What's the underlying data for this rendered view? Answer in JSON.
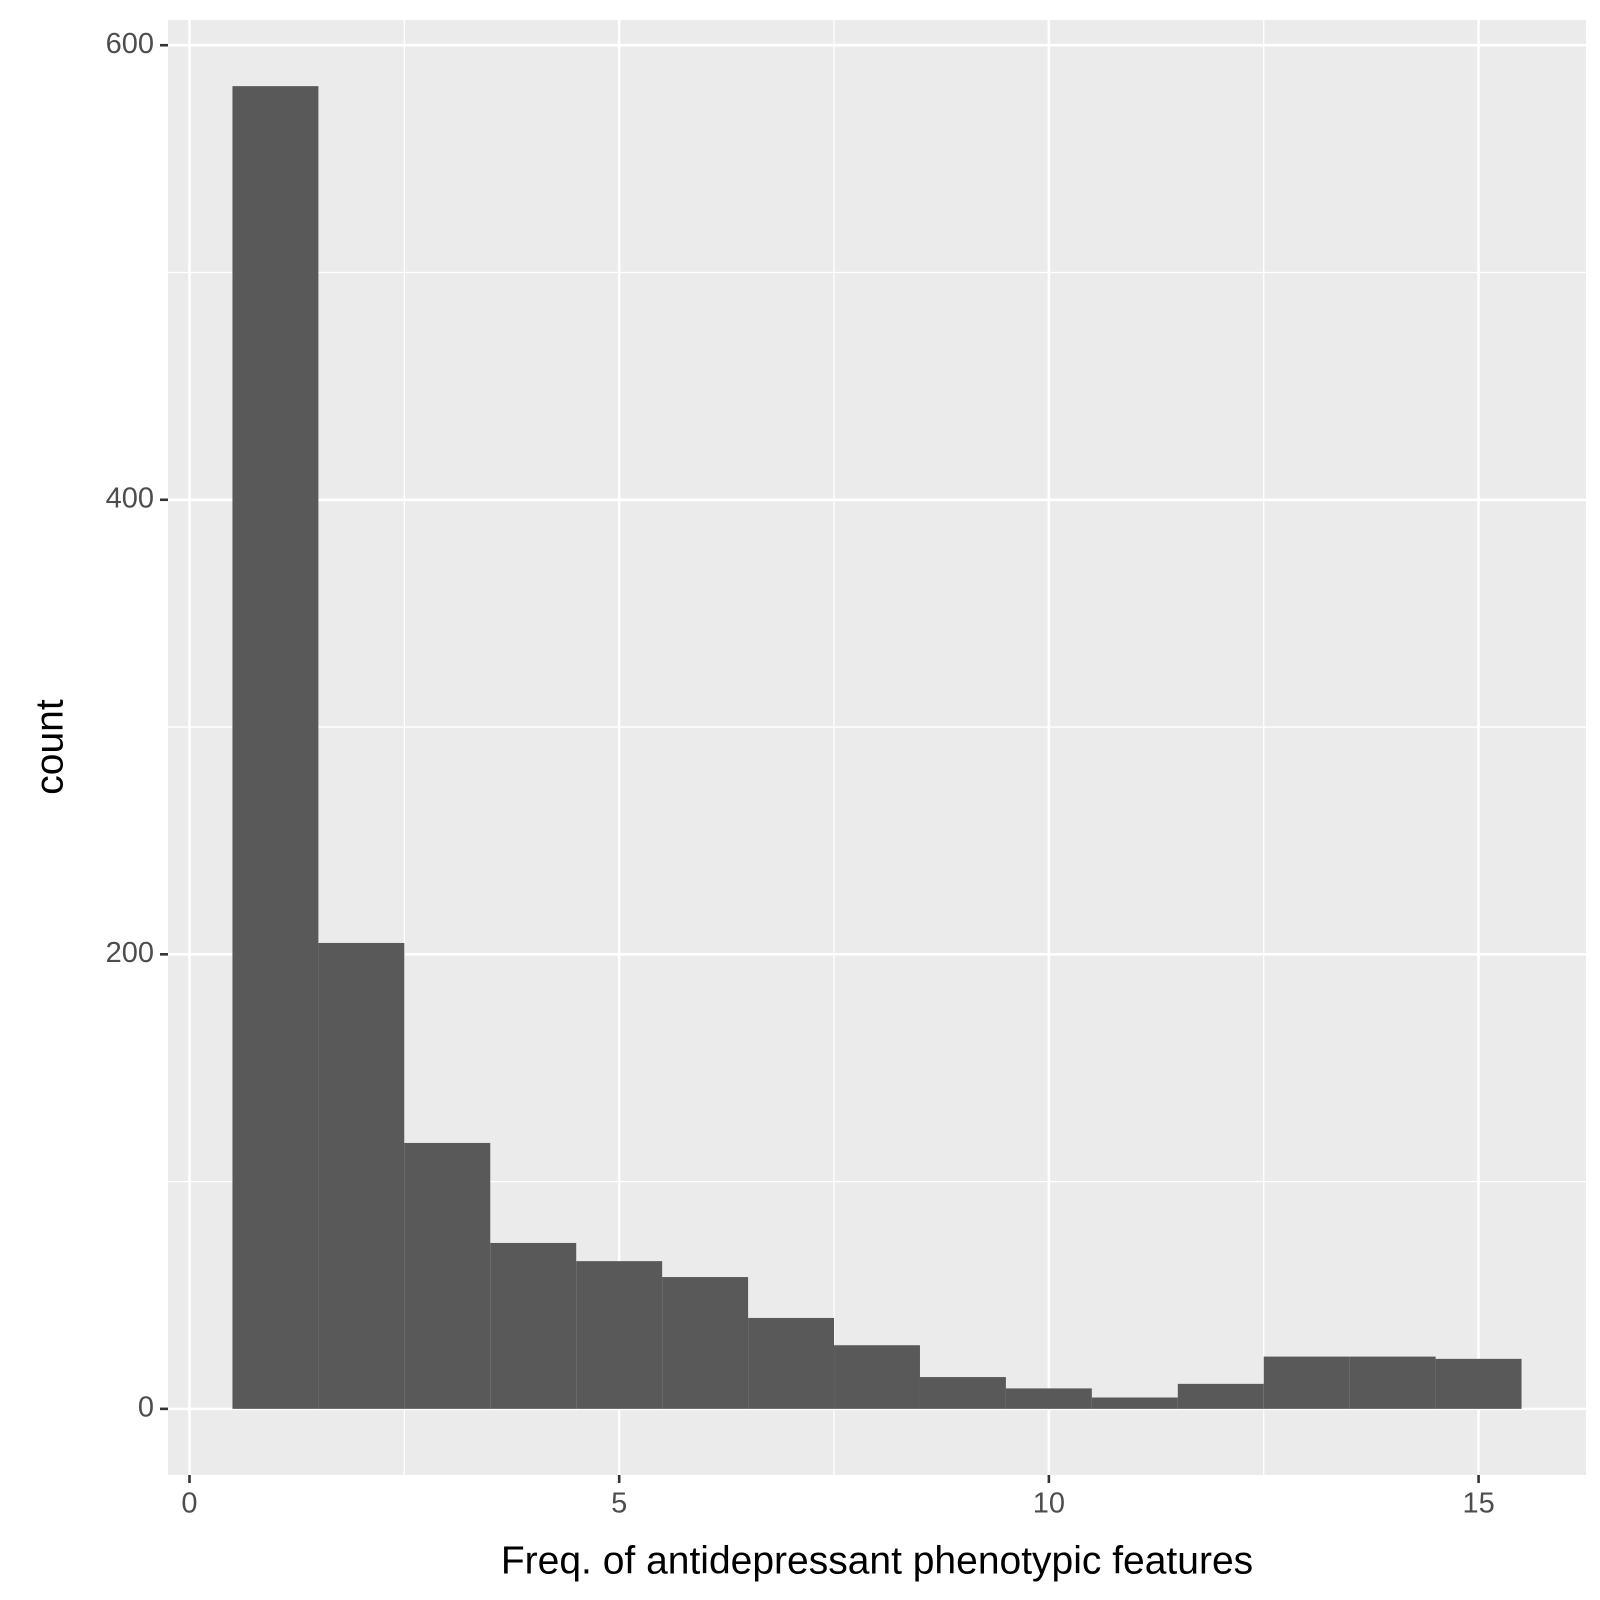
{
  "chart_data": {
    "type": "histogram",
    "x_label": "Freq. of antidepressant phenotypic features",
    "y_label": "count",
    "bins": [
      0.5,
      1.5,
      2.5,
      3.5,
      4.5,
      5.5,
      6.5,
      7.5,
      8.5,
      9.5,
      10.5,
      11.5,
      12.5,
      13.5,
      14.5,
      15.5
    ],
    "values": [
      582,
      205,
      117,
      73,
      65,
      58,
      40,
      28,
      14,
      9,
      5,
      11,
      23,
      23,
      22
    ],
    "color": "#595959",
    "xlim": [
      -0.25,
      16.25
    ],
    "xticks": [
      0,
      5,
      10,
      15
    ],
    "ylim": [
      -29.1,
      611.1
    ],
    "yticks": [
      0,
      200,
      400,
      600
    ],
    "grid": true
  }
}
